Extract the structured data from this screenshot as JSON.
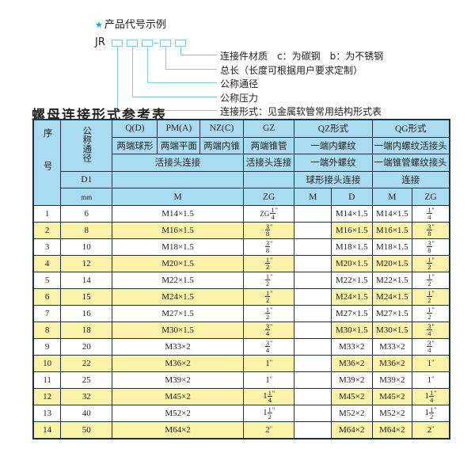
{
  "legend": {
    "title": "产品代号示例",
    "star_icon": "star",
    "code_prefix": "JR",
    "annotations": [
      "连接件材质　c：为碳钢　b：为不锈钢",
      "总长（长度可根据用户要求定制）",
      "公称通径",
      "公称压力",
      "连接形式：见金属软管常用结构形式表"
    ]
  },
  "table_title": "螺母连接形式参考表",
  "header": {
    "seq": "序号",
    "dn": "公称通径",
    "d1": "D1",
    "mm": "mm",
    "row1": [
      "Q(D)",
      "PM(A)",
      "NZ(C)",
      "GZ",
      "QZ形式",
      "QG形式"
    ],
    "row2": [
      "两端球形",
      "两端平面",
      "两端内锥",
      "两端锥管",
      "一端内螺纹",
      "一端内螺纹活接头"
    ],
    "row3": [
      "活接头连接",
      "活接头连接",
      "一端外螺纹",
      "一端锥管螺纹接头"
    ],
    "row4": [
      "",
      "",
      "球形接头连接",
      "连接"
    ],
    "row5": [
      "M",
      "ZG",
      "M",
      "D",
      "M",
      "ZG"
    ]
  },
  "colors": {
    "header_bg": "#a9dbf1",
    "highlight_row": "#fbf3a9",
    "accent": "#1aa0d8"
  },
  "rows": [
    {
      "seq": "1",
      "dn": "6",
      "m": "M14×1.5",
      "zg": {
        "prefix": "ZG",
        "whole": "",
        "num": "1",
        "den": "4"
      },
      "qz_m": "",
      "qz_d": "M14×1.5",
      "qg_m": "M14×1.5",
      "qg_zg": {
        "whole": "",
        "num": "1",
        "den": "4"
      }
    },
    {
      "seq": "2",
      "dn": "8",
      "m": "M16×1.5",
      "zg": {
        "whole": "",
        "num": "3",
        "den": "8"
      },
      "qz_m": "",
      "qz_d": "M16×1.5",
      "qg_m": "M16×1.5",
      "qg_zg": {
        "whole": "",
        "num": "3",
        "den": "8"
      }
    },
    {
      "seq": "3",
      "dn": "10",
      "m": "M18×1.5",
      "zg": {
        "whole": "",
        "num": "3",
        "den": "8"
      },
      "qz_m": "",
      "qz_d": "M18×1.5",
      "qg_m": "M18×1.5",
      "qg_zg": {
        "whole": "",
        "num": "3",
        "den": "8"
      }
    },
    {
      "seq": "4",
      "dn": "12",
      "m": "M20×1.5",
      "zg": {
        "whole": "",
        "num": "1",
        "den": "2"
      },
      "qz_m": "",
      "qz_d": "M20×1.5",
      "qg_m": "M20×1.5",
      "qg_zg": {
        "whole": "",
        "num": "1",
        "den": "2"
      }
    },
    {
      "seq": "5",
      "dn": "14",
      "m": "M22×1.5",
      "zg": {
        "whole": "",
        "num": "1",
        "den": "2"
      },
      "qz_m": "",
      "qz_d": "M22×1.5",
      "qg_m": "M22×1.5",
      "qg_zg": {
        "whole": "",
        "num": "1",
        "den": "2"
      }
    },
    {
      "seq": "6",
      "dn": "15",
      "m": "M24×1.5",
      "zg": {
        "whole": "",
        "num": "1",
        "den": "2"
      },
      "qz_m": "",
      "qz_d": "M24×1.5",
      "qg_m": "M24×1.5",
      "qg_zg": {
        "whole": "",
        "num": "1",
        "den": "2"
      }
    },
    {
      "seq": "7",
      "dn": "16",
      "m": "M27×1.5",
      "zg": {
        "whole": "",
        "num": "1",
        "den": "2"
      },
      "qz_m": "",
      "qz_d": "M27×1.5",
      "qg_m": "M27×1.5",
      "qg_zg": {
        "whole": "",
        "num": "1",
        "den": "2"
      }
    },
    {
      "seq": "8",
      "dn": "18",
      "m": "M30×1.5",
      "zg": {
        "whole": "",
        "num": "3",
        "den": "4"
      },
      "qz_m": "",
      "qz_d": "M30×1.5",
      "qg_m": "M30×1.5",
      "qg_zg": {
        "whole": "",
        "num": "3",
        "den": "4"
      }
    },
    {
      "seq": "9",
      "dn": "20",
      "m": "M33×2",
      "zg": {
        "whole": "",
        "num": "3",
        "den": "4"
      },
      "qz_m": "",
      "qz_d": "M33×2",
      "qg_m": "M33×2",
      "qg_zg": {
        "whole": "",
        "num": "3",
        "den": "4"
      }
    },
    {
      "seq": "10",
      "dn": "22",
      "m": "M36×2",
      "zg": {
        "whole": "1",
        "num": "",
        "den": ""
      },
      "qz_m": "",
      "qz_d": "M36×2",
      "qg_m": "M36×2",
      "qg_zg": {
        "whole": "1",
        "num": "",
        "den": ""
      }
    },
    {
      "seq": "11",
      "dn": "25",
      "m": "M39×2",
      "zg": {
        "whole": "1",
        "num": "",
        "den": ""
      },
      "qz_m": "",
      "qz_d": "M39×2",
      "qg_m": "M39×2",
      "qg_zg": {
        "whole": "1",
        "num": "",
        "den": ""
      }
    },
    {
      "seq": "12",
      "dn": "32",
      "m": "M45×2",
      "zg": {
        "whole": "1",
        "num": "1",
        "den": "4"
      },
      "qz_m": "",
      "qz_d": "M45×2",
      "qg_m": "M45×2",
      "qg_zg": {
        "whole": "1",
        "num": "1",
        "den": "4"
      }
    },
    {
      "seq": "13",
      "dn": "40",
      "m": "M52×2",
      "zg": {
        "whole": "1",
        "num": "1",
        "den": "2"
      },
      "qz_m": "",
      "qz_d": "M52×2",
      "qg_m": "M52×2",
      "qg_zg": {
        "whole": "1",
        "num": "1",
        "den": "2"
      }
    },
    {
      "seq": "14",
      "dn": "50",
      "m": "M64×2",
      "zg": {
        "whole": "2",
        "num": "",
        "den": ""
      },
      "qz_m": "",
      "qz_d": "M64×2",
      "qg_m": "M64×2",
      "qg_zg": {
        "whole": "2",
        "num": "",
        "den": ""
      }
    }
  ]
}
